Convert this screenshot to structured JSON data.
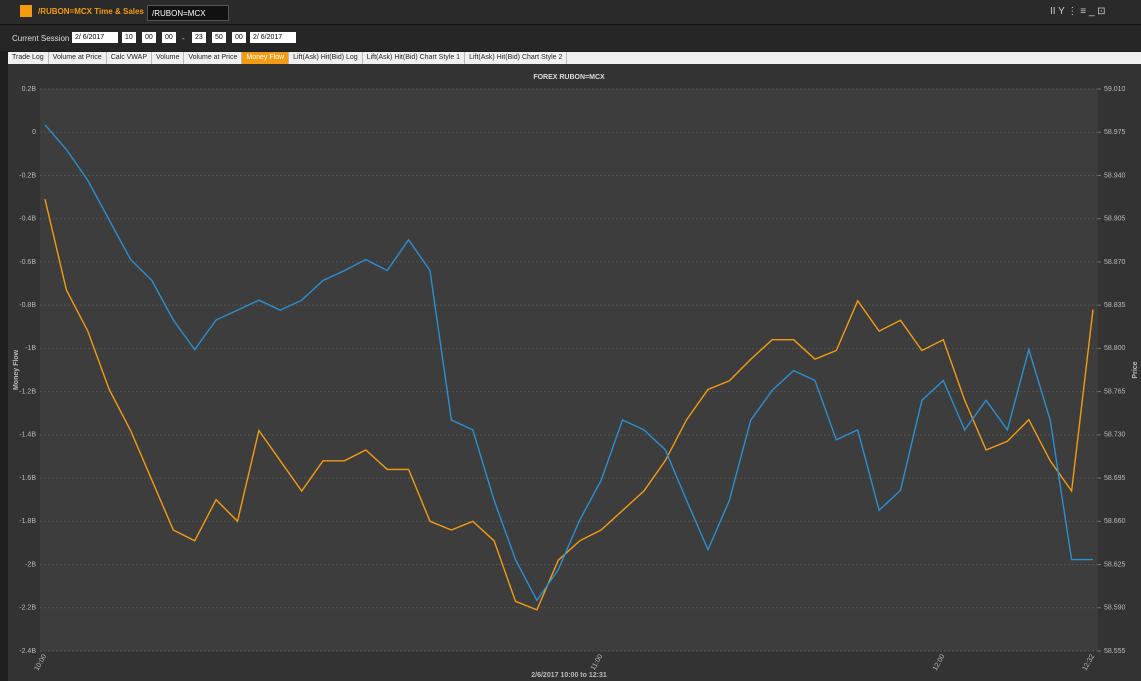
{
  "app": {
    "title": "/RUBON=MCX Time & Sales",
    "search": "/RUBON=MCX"
  },
  "toolbar": {
    "session": "Current Session",
    "start_date": "2/ 6/2017",
    "start_time": [
      "10",
      "00",
      "00"
    ],
    "separator": "-",
    "end_time": [
      "23",
      "50",
      "00"
    ],
    "end_date": "2/ 6/2017"
  },
  "tabs": [
    {
      "label": "Trade Log",
      "active": false
    },
    {
      "label": "Volume at Price",
      "active": false
    },
    {
      "label": "Calc VWAP",
      "active": false
    },
    {
      "label": "Volume",
      "active": false
    },
    {
      "label": "Volume at Price",
      "active": false
    },
    {
      "label": "Money Flow",
      "active": true
    },
    {
      "label": "Lift(Ask) Hit(Bid) Log",
      "active": false
    },
    {
      "label": "Lift(Ask) Hit(Bid) Chart Style 1",
      "active": false
    },
    {
      "label": "Lift(Ask) Hit(Bid) Chart Style 2",
      "active": false
    }
  ],
  "chart_data": {
    "type": "line",
    "title": "FOREX RUBON=MCX",
    "xlabel": "2/6/2017 10:00 to 12:31",
    "ylabel": "Money Flow",
    "y2label": "Price",
    "categories": [
      "10:00",
      null,
      null,
      null,
      null,
      null,
      null,
      null,
      null,
      null,
      null,
      null,
      null,
      null,
      null,
      null,
      null,
      null,
      null,
      null,
      null,
      null,
      null,
      null,
      null,
      null,
      "11:00",
      null,
      null,
      null,
      null,
      null,
      null,
      null,
      null,
      null,
      null,
      null,
      null,
      null,
      null,
      null,
      "12:00",
      null,
      null,
      null,
      null,
      null,
      null,
      "12:32"
    ],
    "series": [
      {
        "color": "#f39c12",
        "values": [
          -0.31,
          -0.73,
          -0.92,
          -1.19,
          -1.38,
          -1.61,
          -1.84,
          -1.89,
          -1.7,
          -1.8,
          -1.38,
          -1.52,
          -1.66,
          -1.52,
          -1.52,
          -1.47,
          -1.56,
          -1.56,
          -1.8,
          -1.84,
          -1.8,
          -1.89,
          -2.17,
          -2.21,
          -1.98,
          -1.89,
          -1.84,
          -1.75,
          -1.66,
          -1.52,
          -1.33,
          -1.19,
          -1.15,
          -1.05,
          -0.96,
          -0.96,
          -1.05,
          -1.01,
          -0.78,
          -0.92,
          -0.87,
          -1.01,
          -0.96,
          -1.24,
          -1.47,
          -1.43,
          -1.33,
          -1.52,
          -1.66,
          -0.82
        ]
      },
      {
        "color": "#2b8fd1",
        "axis": "y2",
        "values": [
          58.981,
          58.961,
          58.936,
          58.904,
          58.872,
          58.855,
          58.823,
          58.799,
          58.823,
          58.831,
          58.839,
          58.831,
          58.839,
          58.855,
          58.863,
          58.872,
          58.863,
          58.888,
          58.863,
          58.742,
          58.734,
          58.677,
          58.629,
          58.596,
          58.621,
          58.661,
          58.693,
          58.742,
          58.734,
          58.718,
          58.677,
          58.637,
          58.677,
          58.742,
          58.766,
          58.782,
          58.774,
          58.726,
          58.734,
          58.669,
          58.685,
          58.758,
          58.774,
          58.734,
          58.758,
          58.734,
          58.799,
          58.742,
          58.629,
          58.629
        ]
      }
    ],
    "ylim": [
      -2.4,
      0.2
    ],
    "yticks": [
      {
        "value": 0.2,
        "label": "0.2B"
      },
      0,
      {
        "value": -0.2,
        "label": "-0.2B"
      },
      {
        "value": -0.4,
        "label": "-0.4B"
      },
      {
        "value": -0.6,
        "label": "-0.6B"
      },
      {
        "value": -0.8,
        "label": "-0.8B"
      },
      {
        "value": -1,
        "label": "-1B"
      },
      {
        "value": -1.2,
        "label": "-1.2B"
      },
      {
        "value": -1.4,
        "label": "-1.4B"
      },
      {
        "value": -1.6,
        "label": "-1.6B"
      },
      {
        "value": -1.8,
        "label": "-1.8B"
      },
      {
        "value": -2,
        "label": "-2B"
      },
      {
        "value": -2.2,
        "label": "-2.2B"
      },
      {
        "value": -2.4,
        "label": "-2.4B"
      }
    ],
    "y2lim": [
      58.555,
      59.01
    ],
    "y2ticks": [
      {
        "value": 59.01,
        "label": "59.010"
      },
      58.975,
      {
        "value": 58.94,
        "label": "58.940"
      },
      58.905,
      {
        "value": 58.87,
        "label": "58.870"
      },
      58.835,
      {
        "value": 58.8,
        "label": "58.800"
      },
      58.765,
      {
        "value": 58.73,
        "label": "58.730"
      },
      58.695,
      {
        "value": 58.66,
        "label": "58.660"
      },
      58.625,
      {
        "value": 58.59,
        "label": "58.590"
      },
      58.555
    ],
    "grid": true
  }
}
